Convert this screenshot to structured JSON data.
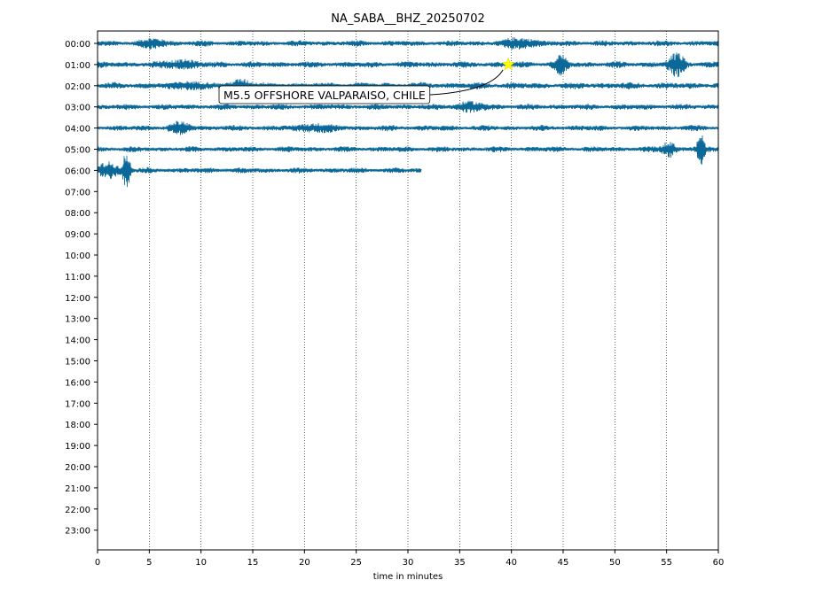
{
  "chart_data": {
    "type": "line",
    "title": "NA_SABA__BHZ_20250702",
    "xlabel": "time in minutes",
    "ylabel": "",
    "xlim": [
      0,
      60
    ],
    "x_ticks": [
      0,
      5,
      10,
      15,
      20,
      25,
      30,
      35,
      40,
      45,
      50,
      55,
      60
    ],
    "grid": "vertical dotted lines at x ticks",
    "y_tick_labels": [
      "00:00",
      "01:00",
      "02:00",
      "03:00",
      "04:00",
      "05:00",
      "06:00",
      "07:00",
      "08:00",
      "09:00",
      "10:00",
      "11:00",
      "12:00",
      "13:00",
      "14:00",
      "15:00",
      "16:00",
      "17:00",
      "18:00",
      "19:00",
      "20:00",
      "21:00",
      "22:00",
      "23:00"
    ],
    "trace_color": "#0b6898",
    "traces": [
      {
        "hour": "00:00",
        "start_min": 0,
        "end_min": 60,
        "noise": 2.6,
        "events": [
          {
            "minute": 41,
            "amp": 5,
            "width": 1.5
          },
          {
            "minute": 5.5,
            "amp": 4,
            "width": 1.2
          }
        ]
      },
      {
        "hour": "01:00",
        "start_min": 0,
        "end_min": 60,
        "noise": 2.8,
        "events": [
          {
            "minute": 44.8,
            "amp": 9,
            "width": 0.6
          },
          {
            "minute": 56,
            "amp": 11,
            "width": 0.8
          },
          {
            "minute": 8,
            "amp": 4,
            "width": 1.5
          }
        ]
      },
      {
        "hour": "02:00",
        "start_min": 0,
        "end_min": 60,
        "noise": 3.0,
        "events": [
          {
            "minute": 14,
            "amp": 6,
            "width": 1.0
          },
          {
            "minute": 9,
            "amp": 4,
            "width": 1.0
          }
        ]
      },
      {
        "hour": "03:00",
        "start_min": 0,
        "end_min": 60,
        "noise": 2.6,
        "events": [
          {
            "minute": 36,
            "amp": 4,
            "width": 1.5
          }
        ]
      },
      {
        "hour": "04:00",
        "start_min": 0,
        "end_min": 60,
        "noise": 2.6,
        "events": [
          {
            "minute": 8,
            "amp": 5,
            "width": 1.0
          },
          {
            "minute": 21,
            "amp": 4,
            "width": 1.5
          }
        ]
      },
      {
        "hour": "05:00",
        "start_min": 0,
        "end_min": 60,
        "noise": 2.5,
        "events": [
          {
            "minute": 55.2,
            "amp": 9,
            "width": 0.6
          },
          {
            "minute": 58.3,
            "amp": 18,
            "width": 0.35
          }
        ]
      },
      {
        "hour": "06:00",
        "start_min": 0,
        "end_min": 31.3,
        "noise": 2.5,
        "events": [
          {
            "minute": 1.0,
            "amp": 8,
            "width": 1.0
          },
          {
            "minute": 2.8,
            "amp": 22,
            "width": 0.35
          }
        ]
      }
    ],
    "event_marker": {
      "minute": 39.7,
      "hour_row": "01:00",
      "color": "#ffff00",
      "label": "M5.5 OFFSHORE VALPARAISO, CHILE"
    }
  }
}
